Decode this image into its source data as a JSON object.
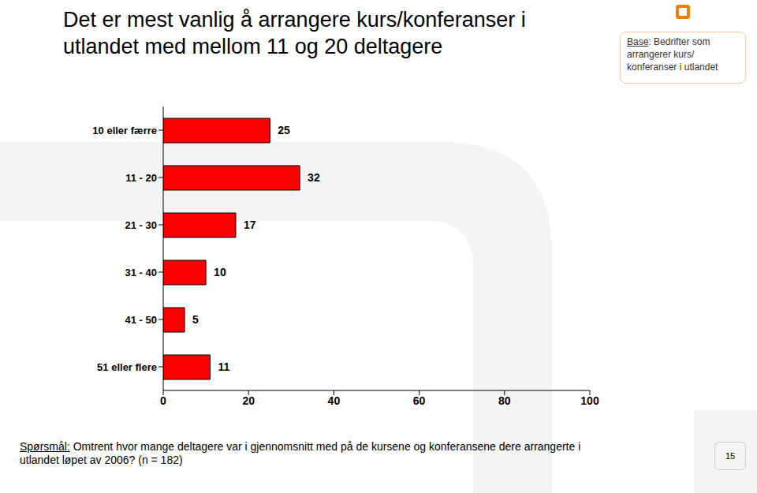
{
  "chart_data": {
    "type": "bar",
    "title": "Det er mest vanlig å arrangere kurs/konferanser i\nutlandet med mellom 11 og 20 deltagere",
    "categories": [
      "10 eller færre",
      "11 - 20",
      "21 - 30",
      "31 - 40",
      "41 - 50",
      "51 eller flere"
    ],
    "values": [
      25,
      32,
      17,
      10,
      5,
      11
    ],
    "color": "#ff0000",
    "orientation": "horizontal",
    "xlim": [
      0,
      100
    ],
    "xticks": [
      0,
      20,
      40,
      60,
      80,
      100
    ],
    "data_labels": true,
    "grid": false
  },
  "base": {
    "label": "Base",
    "text": ": Bedrifter som\narrangerer kurs/\nkonferanser i utlandet"
  },
  "question": {
    "label": "Spørsmål:",
    "text": " Omtrent hvor mange deltagere var i gjennomsnitt med på de kursene og konferansene dere arrangerte i\nutlandet løpet av 2006? (n = 182)"
  },
  "page_number": 15
}
